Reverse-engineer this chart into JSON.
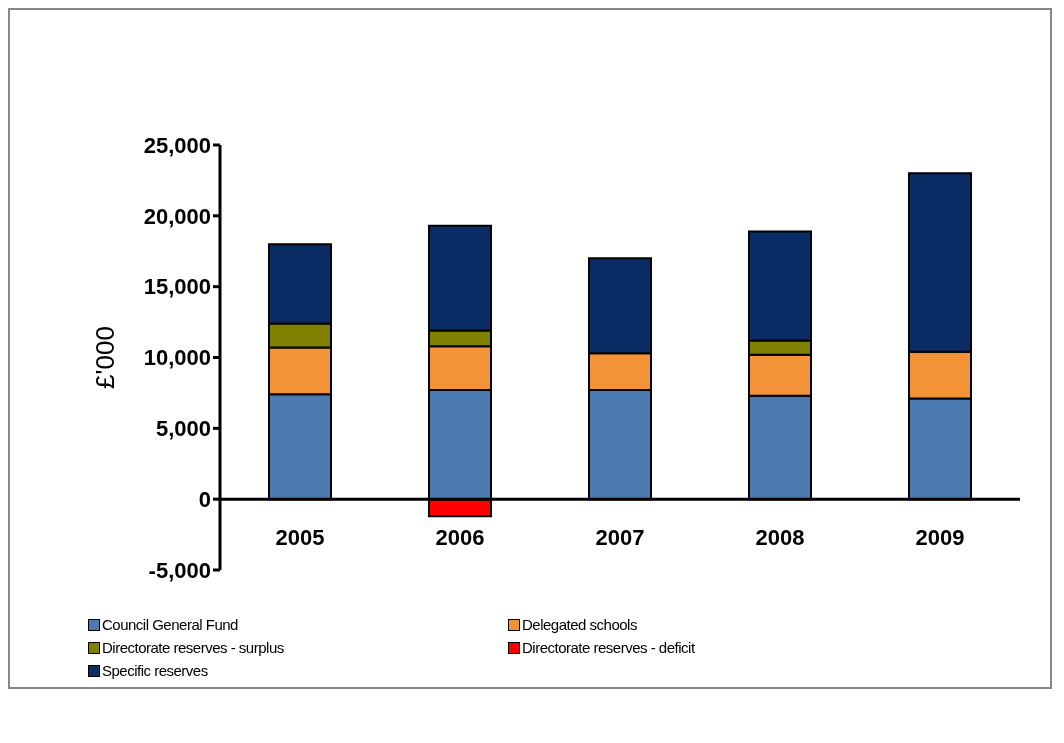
{
  "chart_data": {
    "type": "bar",
    "stacked": true,
    "ylabel": "£'000",
    "categories": [
      "2005",
      "2006",
      "2007",
      "2008",
      "2009"
    ],
    "series": [
      {
        "name": "Council General Fund",
        "color": "#4a7ab0",
        "values": [
          7400,
          7700,
          7700,
          7300,
          7100
        ]
      },
      {
        "name": "Delegated schools",
        "color": "#f39237",
        "values": [
          3300,
          3100,
          2600,
          2900,
          3300
        ]
      },
      {
        "name": "Directorate reserves - surplus",
        "color": "#808000",
        "values": [
          1700,
          1100,
          null,
          1000,
          null
        ]
      },
      {
        "name": "Directorate reserves - deficit",
        "color": "#ff0000",
        "values": [
          null,
          -1200,
          null,
          null,
          null
        ]
      },
      {
        "name": "Specific reserves",
        "color": "#0a2d66",
        "values": [
          5600,
          7400,
          6700,
          7700,
          12600
        ]
      }
    ],
    "ylim": [
      -5000,
      25000
    ],
    "yticks": [
      {
        "value": -5000,
        "label": "-5,000"
      },
      {
        "value": 0,
        "label": "0"
      },
      {
        "value": 5000,
        "label": "5,000"
      },
      {
        "value": 10000,
        "label": "10,000"
      },
      {
        "value": 15000,
        "label": "15,000"
      },
      {
        "value": 20000,
        "label": "20,000"
      },
      {
        "value": 25000,
        "label": "25,000"
      }
    ],
    "grid": false,
    "legend": "bottom"
  }
}
